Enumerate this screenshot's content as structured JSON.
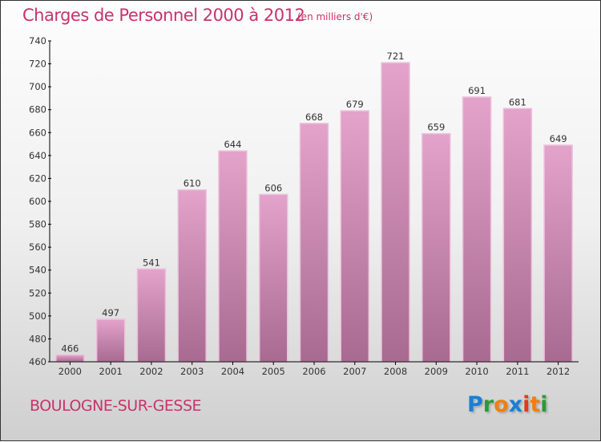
{
  "title": "Charges de Personnel 2000 à 2012",
  "unit": "(en milliers d'€)",
  "city": "BOULOGNE-SUR-GESSE",
  "logo": {
    "text": "Proxiti",
    "letters": [
      "P",
      "r",
      "o",
      "x",
      "i",
      "t",
      "i"
    ],
    "colors": [
      "#1a7fd4",
      "#2a9a3a",
      "#f07f10",
      "#1a7fd4",
      "#e03a1a",
      "#f07f10",
      "#2a9a3a"
    ]
  },
  "chart_data": {
    "type": "bar",
    "title": "Charges de Personnel 2000 à 2012",
    "categories": [
      "2000",
      "2001",
      "2002",
      "2003",
      "2004",
      "2005",
      "2006",
      "2007",
      "2008",
      "2009",
      "2010",
      "2011",
      "2012"
    ],
    "values": [
      466,
      497,
      541,
      610,
      644,
      606,
      668,
      679,
      721,
      659,
      691,
      681,
      649
    ],
    "ylim": [
      460,
      740
    ],
    "yticks": [
      460,
      480,
      500,
      520,
      540,
      560,
      580,
      600,
      620,
      640,
      660,
      680,
      700,
      720,
      740
    ],
    "bar_color": "#d68fb8",
    "grid": false
  }
}
